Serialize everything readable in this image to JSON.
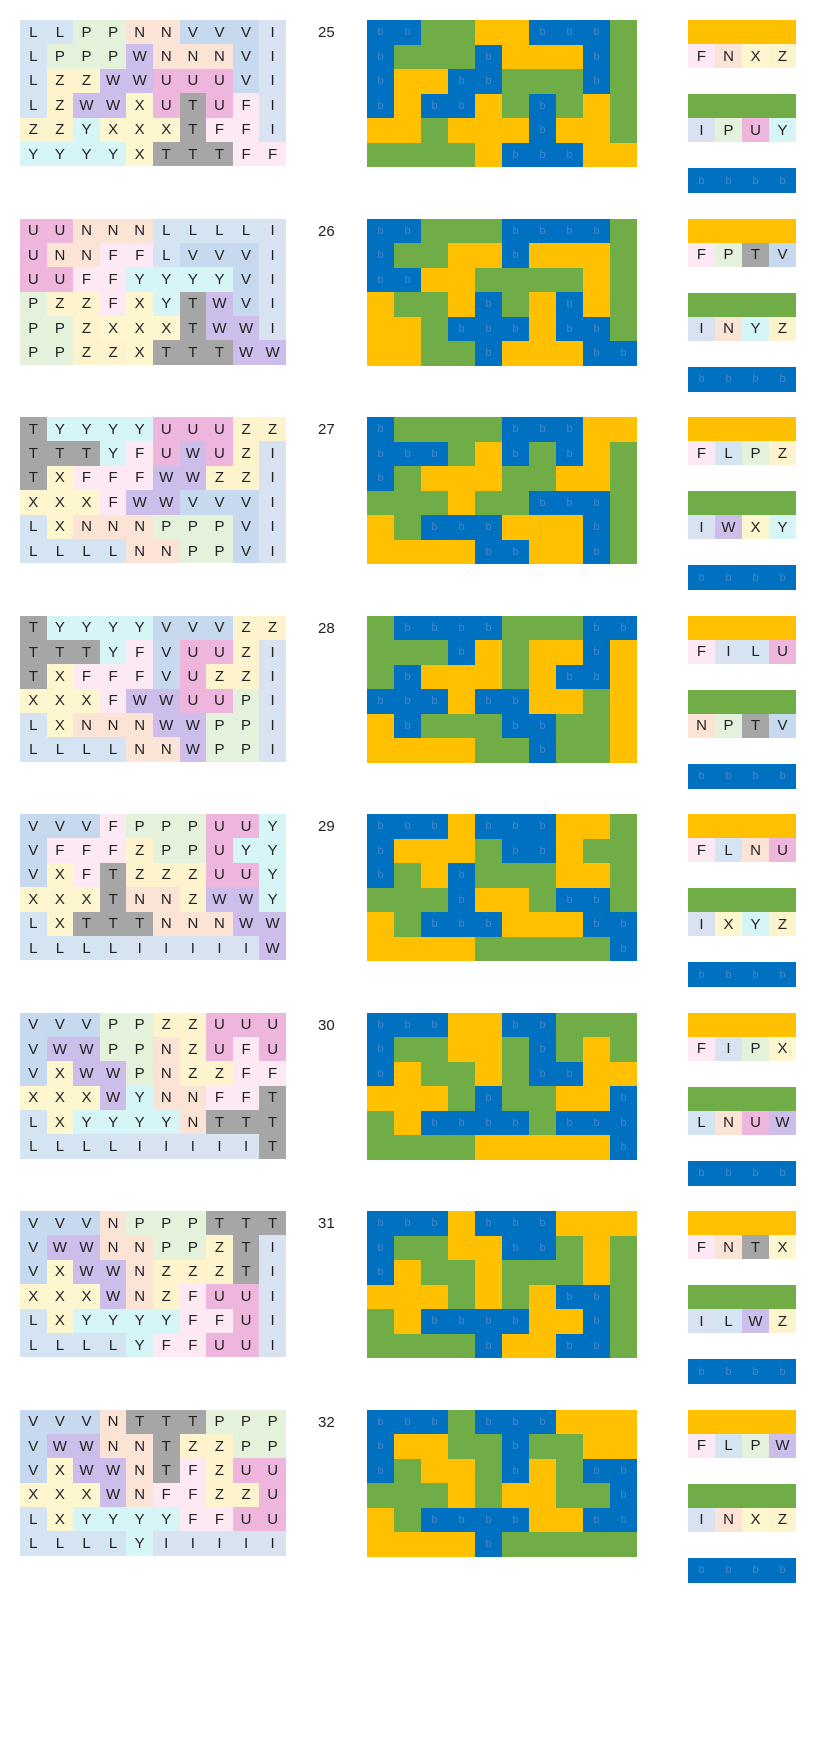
{
  "colors": {
    "group_yellow": "#ffc000",
    "group_green": "#70ad47",
    "group_blue": "#0070c0",
    "blue_label": "#4a86c6",
    "letters": {
      "F": "#fde9f3",
      "I": "#d9e2f0",
      "L": "#d5e4f3",
      "N": "#fbe3d6",
      "P": "#e4f1db",
      "T": "#a6a6a6",
      "U": "#eeb6dd",
      "V": "#c7d9ee",
      "W": "#cdbdeb",
      "X": "#fdf6cf",
      "Y": "#d6f5f7",
      "Z": "#fdf3cd"
    }
  },
  "blue_label_text": "b",
  "puzzles": [
    {
      "number": "25",
      "grid": [
        "LLPPNNVVVI",
        "LPPPWNNNVI",
        "LZZWWUUUVI",
        "LZWWXUTUFI",
        "ZZYXXXTFFI",
        "YYYYXTTTFF"
      ],
      "yellow": "FNXZ",
      "green": "IPUY"
    },
    {
      "number": "26",
      "grid": [
        "UUNNNLLLLI",
        "UNNFFLVVVI",
        "UUFFYYYYVI",
        "PZZFXYTWVI",
        "PPZXXXTWWI",
        "PPZZXTTTWW"
      ],
      "yellow": "FPTV",
      "green": "INYZ"
    },
    {
      "number": "27",
      "grid": [
        "TYYYYUUUZZ",
        "TTTYFUWUZI",
        "TXFFFWWZZI",
        "XXXFWWVVVI",
        "LXNNNPPPVI",
        "LLLLNNPPVI"
      ],
      "yellow": "FLPZ",
      "green": "IWXY"
    },
    {
      "number": "28",
      "grid": [
        "TYYYYVVVZZ",
        "TTTYFVUUZI",
        "TXFFFVUZZI",
        "XXXFWWUUPI",
        "LXNNNWWPPI",
        "LLLLNNWPPI"
      ],
      "yellow": "FILU",
      "green": "NPTV"
    },
    {
      "number": "29",
      "grid": [
        "VVVFPPPUUY",
        "VFFFZPPUYY",
        "VXFTZZZUUY",
        "XXXTNNZWWY",
        "LXTTTNNNWW",
        "LLLLIIIIIW"
      ],
      "yellow": "FLNU",
      "green": "IXYZ"
    },
    {
      "number": "30",
      "grid": [
        "VVVPPZZUUU",
        "VWWPPNZUFU",
        "VXWWPNZZFF",
        "XXXWYNNFFT",
        "LXYYYYNTTT",
        "LLLLIIIIIT"
      ],
      "yellow": "FIPX",
      "green": "LNUW"
    },
    {
      "number": "31",
      "grid": [
        "VVVNPPPTTT",
        "VWWNNPPZTI",
        "VXWWNZZZTI",
        "XXXWNZFUUI",
        "LXYYYYFFUI",
        "LLLLYFFUUI"
      ],
      "yellow": "FNTX",
      "green": "ILWZ"
    },
    {
      "number": "32",
      "grid": [
        "VVVNTTTPPP",
        "VWWNNTZZPP",
        "VXWWNTFZUU",
        "XXXWNFFZZU",
        "LXYYYYFFUU",
        "LLLLYIIIII"
      ],
      "yellow": "FLPW",
      "green": "INXZ"
    }
  ]
}
